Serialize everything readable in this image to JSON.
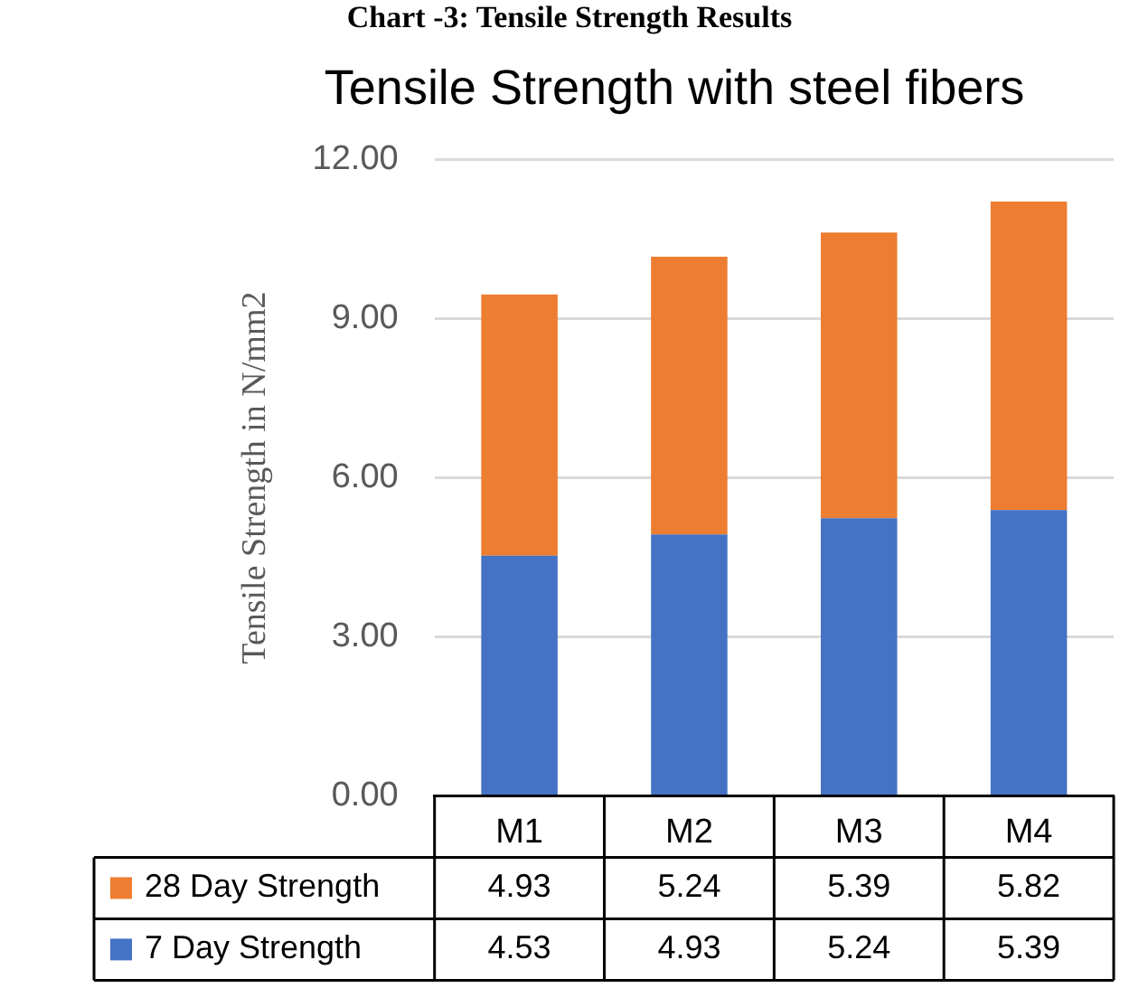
{
  "chart_data": {
    "type": "bar",
    "title": "Tensile Strength with steel fibers",
    "ylabel": "Tensile Strength in N/mm2",
    "annotations": [
      "Chart -3: Tensile Strength Results"
    ],
    "categories": [
      "M1",
      "M2",
      "M3",
      "M4"
    ],
    "stacked": true,
    "data_labels": true,
    "grid": "y",
    "legend": "bottom",
    "ylim": [
      0,
      12
    ],
    "yticks": [
      {
        "value": 0,
        "label": "0.00"
      },
      {
        "value": 3,
        "label": "3.00"
      },
      {
        "value": 6,
        "label": "6.00"
      },
      {
        "value": 9,
        "label": "9.00"
      },
      {
        "value": 12,
        "label": "12.00"
      }
    ],
    "series": [
      {
        "name": "7 Day Strength",
        "color": "#4472c4",
        "values": [
          4.53,
          4.93,
          5.24,
          5.39
        ]
      },
      {
        "name": "28 Day Strength",
        "color": "#ed7d31",
        "values": [
          4.93,
          5.24,
          5.39,
          5.82
        ]
      }
    ]
  }
}
